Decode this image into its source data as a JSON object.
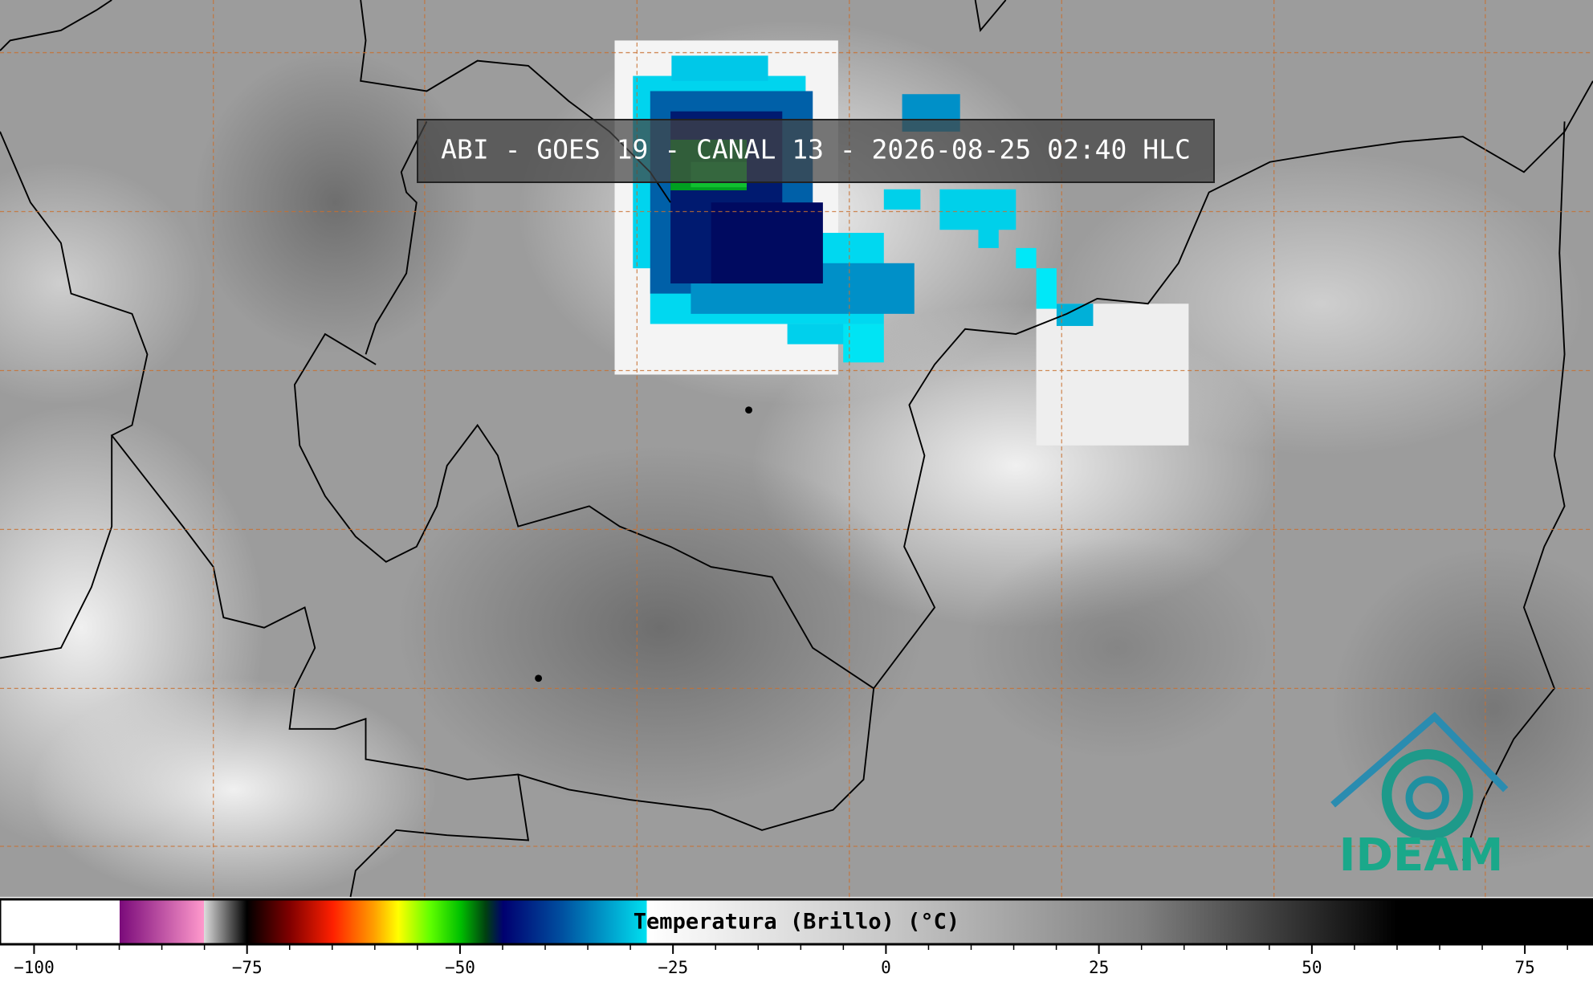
{
  "title": "ABI - GOES 19 - CANAL 13 - 2026-08-25 02:40 HLC",
  "logo": "IDEAM",
  "colorbar": {
    "label": "Temperatura (Brillo) (°C)",
    "lim": [
      -104,
      83
    ],
    "ticks": [
      {
        "value": -100,
        "label": "−100"
      },
      {
        "value": -75,
        "label": "−75"
      },
      {
        "value": -50,
        "label": "−50"
      },
      {
        "value": -25,
        "label": "−25"
      },
      0,
      25,
      50,
      75
    ],
    "minor_ticks": [
      -95,
      -90,
      -85,
      -80,
      -70,
      -65,
      -60,
      -55,
      -45,
      -40,
      -35,
      -30,
      -20,
      -15,
      -10,
      -5,
      5,
      10,
      15,
      20,
      30,
      35,
      40,
      45,
      55,
      60,
      65,
      70,
      80
    ]
  }
}
